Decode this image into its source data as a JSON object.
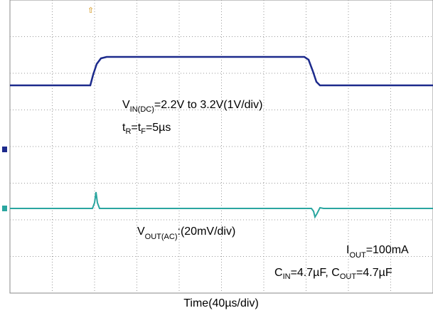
{
  "vin": {
    "symbol": "V",
    "subscript": "IN(DC)",
    "text": "=2.2V to 3.2V(1V/div)"
  },
  "rise": {
    "t1": "t",
    "s1": "R",
    "eq": "=t",
    "s2": "F",
    "text": "=5µs"
  },
  "vout": {
    "symbol": "V",
    "subscript": "OUT(AC)",
    "text": ":(20mV/div)"
  },
  "iout": {
    "symbol": "I",
    "subscript": "OUT",
    "text": "=100mA"
  },
  "caps": {
    "c1": "C",
    "s1": "IN",
    "t1": "=4.7µF, C",
    "s2": "OUT",
    "t2": "=4.7µF"
  },
  "x_label": "Time(40µs/div)"
}
